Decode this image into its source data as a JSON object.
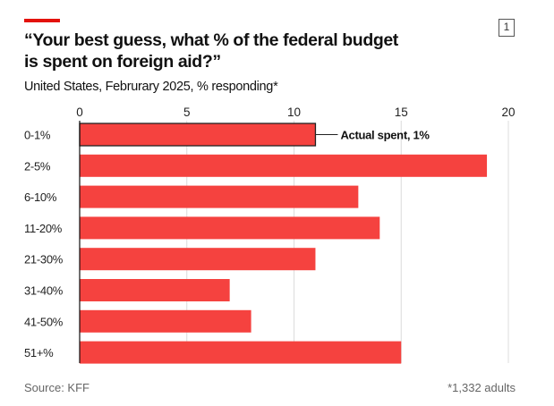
{
  "header": {
    "title": "“Your best guess, what % of the federal budget is spent on foreign aid?”",
    "subtitle": "United States, Februrary 2025, % responding*",
    "badge": "1"
  },
  "footer": {
    "source": "Source: KFF",
    "note": "*1,332 adults"
  },
  "colors": {
    "bar": "#f5423f",
    "accent": "#e3120b",
    "highlight_outline": "#222222"
  },
  "chart_data": {
    "type": "bar",
    "orientation": "horizontal",
    "categories": [
      "0-1%",
      "2-5%",
      "6-10%",
      "11-20%",
      "21-30%",
      "31-40%",
      "41-50%",
      "51+%"
    ],
    "values": [
      11,
      19,
      13,
      14,
      11,
      7,
      8,
      15
    ],
    "xlim": [
      0,
      20
    ],
    "xticks": [
      0,
      5,
      10,
      15,
      20
    ],
    "grid": true,
    "axis_position": "top",
    "annotation": {
      "category": "0-1%",
      "text": "Actual spent, 1%"
    },
    "title": "“Your best guess, what % of the federal budget is spent on foreign aid?”",
    "subtitle": "United States, Februrary 2025, % responding*"
  }
}
